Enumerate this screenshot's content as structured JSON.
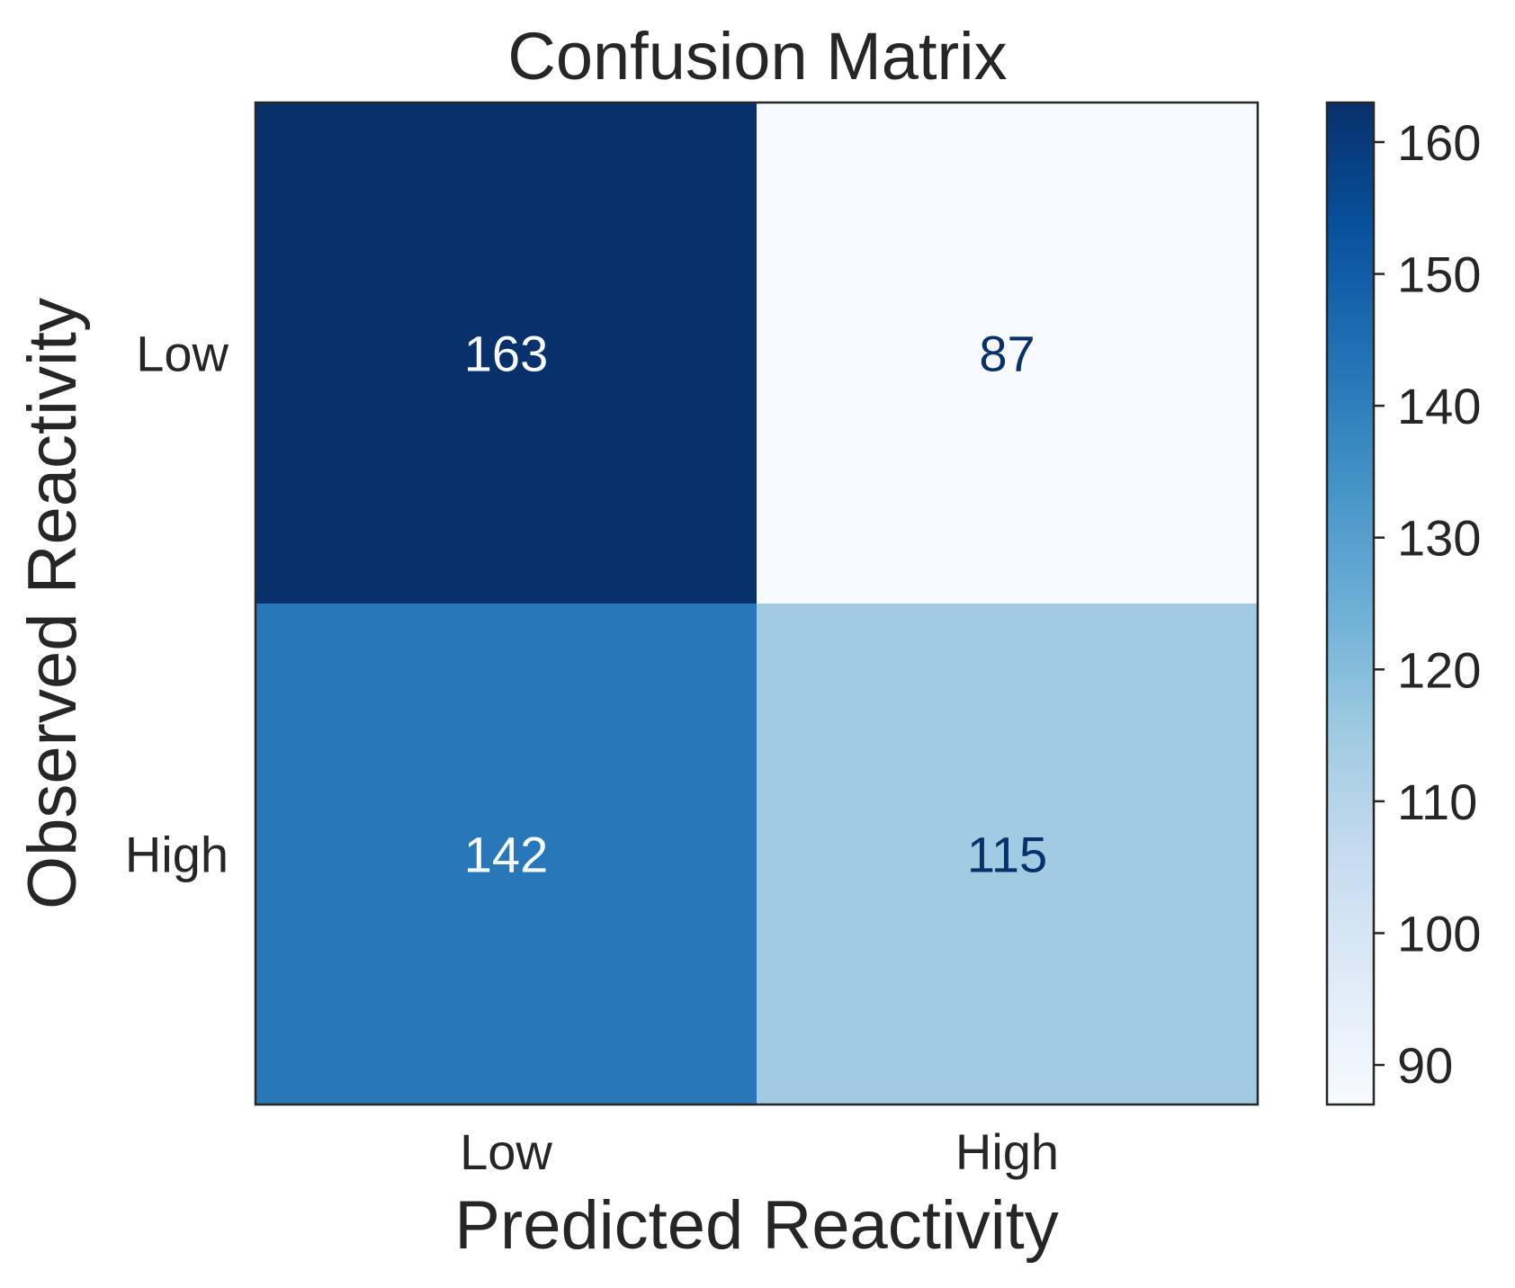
{
  "chart_data": {
    "type": "heatmap",
    "title": "Confusion Matrix",
    "xlabel": "Predicted Reactivity",
    "ylabel": "Observed Reactivity",
    "x_categories": [
      "Low",
      "High"
    ],
    "y_categories": [
      "Low",
      "High"
    ],
    "matrix": [
      [
        163,
        87
      ],
      [
        142,
        115
      ]
    ],
    "colormap": "Blues",
    "colorbar": {
      "min": 87,
      "max": 163,
      "ticks": [
        90,
        100,
        110,
        120,
        130,
        140,
        150,
        160
      ]
    },
    "colors": {
      "text": "#262626",
      "cell_text_dark_bg": "#f7fbff",
      "cell_text_light_bg": "#08306b",
      "frame": "#262626"
    }
  }
}
